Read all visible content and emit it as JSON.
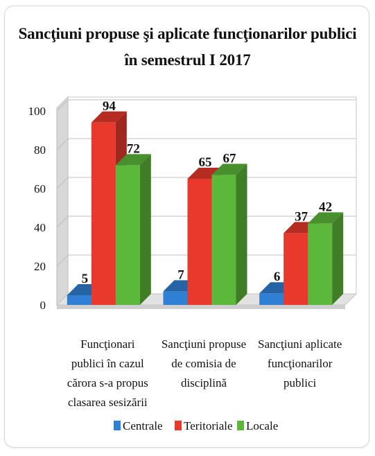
{
  "chart_data": {
    "type": "bar",
    "title": "Sancţiuni propuse şi aplicate funcţionarilor publici",
    "subtitle": "în semestrul  I 2017",
    "categories": [
      [
        "Funcţionari",
        "publici în cazul",
        "cărora s-a propus",
        "clasarea sesizării"
      ],
      [
        "Sancţiuni propuse",
        "de comisia de",
        "disciplină"
      ],
      [
        "Sancţiuni aplicate",
        "funcţionarilor",
        "publici"
      ]
    ],
    "series": [
      {
        "name": "Centrale",
        "color": "#2f7fd4",
        "values": [
          5,
          7,
          6
        ]
      },
      {
        "name": "Teritoriale",
        "color": "#e8392c",
        "values": [
          94,
          65,
          37
        ]
      },
      {
        "name": "Locale",
        "color": "#5cb83a",
        "values": [
          72,
          67,
          42
        ]
      }
    ],
    "ylim": [
      0,
      100
    ],
    "yticks": [
      0,
      20,
      40,
      60,
      80,
      100
    ],
    "grid": true,
    "legend": "bottom",
    "xlabel": "",
    "ylabel": ""
  }
}
